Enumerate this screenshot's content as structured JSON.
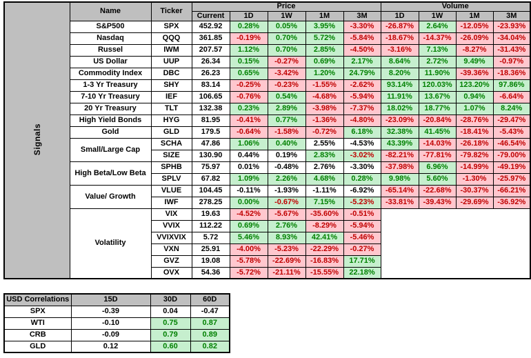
{
  "signals_table": {
    "side_label": "Signals",
    "header": {
      "name": "Name",
      "ticker": "Ticker",
      "price_group": "Price",
      "volume_group": "Volume",
      "price_cols": [
        "Current",
        "1D",
        "1W",
        "1M",
        "3M"
      ],
      "volume_cols": [
        "1D",
        "1W",
        "1M",
        "3M"
      ]
    },
    "rows": [
      {
        "name": "S&P500",
        "span": 1,
        "ticker": "SPX",
        "current": "452.92",
        "price": [
          [
            "0.28%",
            "g"
          ],
          [
            "0.05%",
            "g"
          ],
          [
            "3.95%",
            "g"
          ],
          [
            "-3.30%",
            "r"
          ]
        ],
        "vol": [
          [
            "-26.87%",
            "r"
          ],
          [
            "2.64%",
            "g"
          ],
          [
            "-12.05%",
            "r"
          ],
          [
            "-23.93%",
            "r"
          ]
        ]
      },
      {
        "name": "Nasdaq",
        "span": 1,
        "ticker": "QQQ",
        "current": "361.85",
        "price": [
          [
            "-0.19%",
            "r"
          ],
          [
            "0.70%",
            "g"
          ],
          [
            "5.72%",
            "g"
          ],
          [
            "-5.84%",
            "r"
          ]
        ],
        "vol": [
          [
            "-18.67%",
            "r"
          ],
          [
            "-14.37%",
            "r"
          ],
          [
            "-26.09%",
            "r"
          ],
          [
            "-34.04%",
            "r"
          ]
        ]
      },
      {
        "name": "Russel",
        "span": 1,
        "ticker": "IWM",
        "current": "207.57",
        "price": [
          [
            "1.12%",
            "g"
          ],
          [
            "0.70%",
            "g"
          ],
          [
            "2.85%",
            "g"
          ],
          [
            "-4.50%",
            "r"
          ]
        ],
        "vol": [
          [
            "-3.16%",
            "r"
          ],
          [
            "7.13%",
            "g"
          ],
          [
            "-8.27%",
            "r"
          ],
          [
            "-31.43%",
            "r"
          ]
        ]
      },
      {
        "name": "US Dollar",
        "span": 1,
        "ticker": "UUP",
        "current": "26.34",
        "price": [
          [
            "0.15%",
            "g"
          ],
          [
            "-0.27%",
            "r"
          ],
          [
            "0.69%",
            "g"
          ],
          [
            "2.17%",
            "g"
          ]
        ],
        "vol": [
          [
            "8.64%",
            "g"
          ],
          [
            "2.72%",
            "g"
          ],
          [
            "9.49%",
            "g"
          ],
          [
            "-0.97%",
            "r"
          ]
        ]
      },
      {
        "name": "Commodity Index",
        "span": 1,
        "ticker": "DBC",
        "current": "26.23",
        "price": [
          [
            "0.65%",
            "g"
          ],
          [
            "-3.42%",
            "r"
          ],
          [
            "1.20%",
            "g"
          ],
          [
            "24.79%",
            "g"
          ]
        ],
        "vol": [
          [
            "8.20%",
            "g"
          ],
          [
            "11.90%",
            "g"
          ],
          [
            "-39.36%",
            "r"
          ],
          [
            "-18.36%",
            "r"
          ]
        ]
      },
      {
        "name": "1-3 Yr Treasury",
        "span": 1,
        "ticker": "SHY",
        "current": "83.14",
        "price": [
          [
            "-0.25%",
            "r"
          ],
          [
            "-0.23%",
            "r"
          ],
          [
            "-1.55%",
            "r"
          ],
          [
            "-2.62%",
            "r"
          ]
        ],
        "vol": [
          [
            "93.14%",
            "g"
          ],
          [
            "120.03%",
            "g"
          ],
          [
            "123.20%",
            "g"
          ],
          [
            "97.86%",
            "g"
          ]
        ]
      },
      {
        "name": "7-10 Yr Treasury",
        "span": 1,
        "ticker": "IEF",
        "current": "106.65",
        "price": [
          [
            "-0.76%",
            "r"
          ],
          [
            "0.54%",
            "g"
          ],
          [
            "-4.68%",
            "r"
          ],
          [
            "-5.94%",
            "r"
          ]
        ],
        "vol": [
          [
            "11.91%",
            "g"
          ],
          [
            "13.67%",
            "g"
          ],
          [
            "0.94%",
            "g"
          ],
          [
            "-6.64%",
            "r"
          ]
        ]
      },
      {
        "name": "20 Yr Treasury",
        "span": 1,
        "ticker": "TLT",
        "current": "132.38",
        "price": [
          [
            "0.23%",
            "g"
          ],
          [
            "2.89%",
            "g"
          ],
          [
            "-3.98%",
            "r"
          ],
          [
            "-7.37%",
            "r"
          ]
        ],
        "vol": [
          [
            "18.02%",
            "g"
          ],
          [
            "18.77%",
            "g"
          ],
          [
            "1.07%",
            "g"
          ],
          [
            "8.24%",
            "g"
          ]
        ]
      },
      {
        "name": "High Yield Bonds",
        "span": 1,
        "ticker": "HYG",
        "current": "81.95",
        "price": [
          [
            "-0.41%",
            "r"
          ],
          [
            "0.77%",
            "g"
          ],
          [
            "-1.36%",
            "r"
          ],
          [
            "-4.80%",
            "r"
          ]
        ],
        "vol": [
          [
            "-23.09%",
            "r"
          ],
          [
            "-20.84%",
            "r"
          ],
          [
            "-28.76%",
            "r"
          ],
          [
            "-29.47%",
            "r"
          ]
        ]
      },
      {
        "name": "Gold",
        "span": 1,
        "ticker": "GLD",
        "current": "179.5",
        "price": [
          [
            "-0.64%",
            "r"
          ],
          [
            "-1.58%",
            "r"
          ],
          [
            "-0.72%",
            "r"
          ],
          [
            "6.18%",
            "g"
          ]
        ],
        "vol": [
          [
            "32.38%",
            "g"
          ],
          [
            "41.45%",
            "g"
          ],
          [
            "-18.41%",
            "r"
          ],
          [
            "-5.43%",
            "r"
          ]
        ]
      },
      {
        "name": "Small/Large Cap",
        "span": 2,
        "ticker": "SCHA",
        "current": "47.86",
        "price": [
          [
            "1.06%",
            "g"
          ],
          [
            "0.40%",
            "g"
          ],
          [
            "2.55%",
            "p"
          ],
          [
            "-4.53%",
            "p"
          ]
        ],
        "vol": [
          [
            "43.39%",
            "g"
          ],
          [
            "-14.03%",
            "r"
          ],
          [
            "-26.18%",
            "r"
          ],
          [
            "-46.54%",
            "r"
          ]
        ]
      },
      {
        "name": null,
        "ticker": "SIZE",
        "current": "130.90",
        "price": [
          [
            "0.44%",
            "p"
          ],
          [
            "0.19%",
            "p"
          ],
          [
            "2.83%",
            "g"
          ],
          [
            "-3.02%",
            "gr"
          ]
        ],
        "vol": [
          [
            "-82.21%",
            "r"
          ],
          [
            "-77.81%",
            "r"
          ],
          [
            "-79.82%",
            "r"
          ],
          [
            "-79.00%",
            "r"
          ]
        ]
      },
      {
        "name": "High Beta/Low Beta",
        "span": 2,
        "ticker": "SPHB",
        "current": "75.97",
        "price": [
          [
            "0.01%",
            "p"
          ],
          [
            "-0.48%",
            "p"
          ],
          [
            "2.76%",
            "p"
          ],
          [
            "-3.30%",
            "p"
          ]
        ],
        "vol": [
          [
            "-37.98%",
            "r"
          ],
          [
            "6.96%",
            "g"
          ],
          [
            "-14.99%",
            "r"
          ],
          [
            "-49.19%",
            "r"
          ]
        ]
      },
      {
        "name": null,
        "ticker": "SPLV",
        "current": "67.82",
        "price": [
          [
            "1.09%",
            "g"
          ],
          [
            "2.26%",
            "g"
          ],
          [
            "4.68%",
            "g"
          ],
          [
            "0.28%",
            "g"
          ]
        ],
        "vol": [
          [
            "9.98%",
            "g"
          ],
          [
            "5.60%",
            "g"
          ],
          [
            "-1.30%",
            "r"
          ],
          [
            "-25.97%",
            "r"
          ]
        ]
      },
      {
        "name": "Value/ Growth",
        "span": 2,
        "ticker": "VLUE",
        "current": "104.45",
        "price": [
          [
            "-0.11%",
            "p"
          ],
          [
            "-1.93%",
            "p"
          ],
          [
            "-1.11%",
            "p"
          ],
          [
            "-6.92%",
            "p"
          ]
        ],
        "vol": [
          [
            "-65.14%",
            "r"
          ],
          [
            "-22.68%",
            "r"
          ],
          [
            "-30.37%",
            "r"
          ],
          [
            "-66.21%",
            "r"
          ]
        ]
      },
      {
        "name": null,
        "ticker": "IWF",
        "current": "278.25",
        "price": [
          [
            "0.00%",
            "g"
          ],
          [
            "-0.67%",
            "gr"
          ],
          [
            "7.15%",
            "g"
          ],
          [
            "-5.23%",
            "gr"
          ]
        ],
        "vol": [
          [
            "-33.81%",
            "r"
          ],
          [
            "-39.43%",
            "r"
          ],
          [
            "-29.69%",
            "r"
          ],
          [
            "-36.92%",
            "r"
          ]
        ]
      },
      {
        "name": "Volatility",
        "span": 6,
        "ticker": "VIX",
        "current": "19.63",
        "price": [
          [
            "-4.52%",
            "r"
          ],
          [
            "-5.67%",
            "r"
          ],
          [
            "-35.60%",
            "r"
          ],
          [
            "-0.51%",
            "r"
          ]
        ],
        "vol": null
      },
      {
        "name": null,
        "ticker": "VVIX",
        "current": "112.22",
        "price": [
          [
            "0.69%",
            "g"
          ],
          [
            "2.76%",
            "g"
          ],
          [
            "-8.29%",
            "r"
          ],
          [
            "-5.94%",
            "r"
          ]
        ],
        "vol": null
      },
      {
        "name": null,
        "ticker": "VVIXVIX",
        "current": "5.72",
        "price": [
          [
            "5.46%",
            "g"
          ],
          [
            "8.93%",
            "g"
          ],
          [
            "42.41%",
            "g"
          ],
          [
            "-5.46%",
            "r"
          ]
        ],
        "vol": null
      },
      {
        "name": null,
        "ticker": "VXN",
        "current": "25.91",
        "price": [
          [
            "-4.00%",
            "r"
          ],
          [
            "-5.23%",
            "r"
          ],
          [
            "-22.29%",
            "r"
          ],
          [
            "-0.27%",
            "r"
          ]
        ],
        "vol": null
      },
      {
        "name": null,
        "ticker": "GVZ",
        "current": "19.08",
        "price": [
          [
            "-5.78%",
            "r"
          ],
          [
            "-22.69%",
            "r"
          ],
          [
            "-16.83%",
            "r"
          ],
          [
            "17.71%",
            "g"
          ]
        ],
        "vol": null
      },
      {
        "name": null,
        "ticker": "OVX",
        "current": "54.36",
        "price": [
          [
            "-5.72%",
            "r"
          ],
          [
            "-21.11%",
            "r"
          ],
          [
            "-15.55%",
            "r"
          ],
          [
            "22.18%",
            "g"
          ]
        ],
        "vol": null
      }
    ]
  },
  "correlations_table": {
    "title": "USD Correlations",
    "columns": [
      "15D",
      "30D",
      "60D"
    ],
    "rows": [
      {
        "label": "SPX",
        "values": [
          [
            "-0.39",
            "p"
          ],
          [
            "0.04",
            "p"
          ],
          [
            "-0.47",
            "p"
          ]
        ]
      },
      {
        "label": "WTI",
        "values": [
          [
            "-0.10",
            "p"
          ],
          [
            "0.75",
            "g"
          ],
          [
            "0.87",
            "g"
          ]
        ]
      },
      {
        "label": "CRB",
        "values": [
          [
            "-0.09",
            "p"
          ],
          [
            "0.79",
            "g"
          ],
          [
            "0.89",
            "g"
          ]
        ]
      },
      {
        "label": "GLD",
        "values": [
          [
            "0.12",
            "p"
          ],
          [
            "0.60",
            "g"
          ],
          [
            "0.82",
            "g"
          ]
        ]
      }
    ]
  },
  "colors": {
    "header_bg": "#BFBFBF",
    "positive_bg": "#C6EFCE",
    "positive_text": "#008000",
    "negative_bg": "#FFC7CE",
    "negative_text": "#C00000"
  }
}
